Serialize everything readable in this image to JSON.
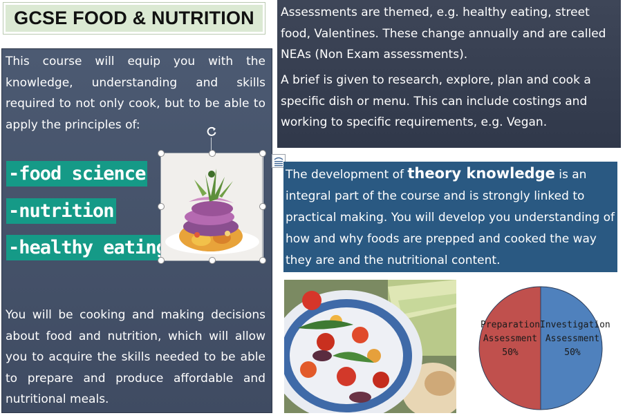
{
  "title": "GCSE FOOD & NUTRITION",
  "left_panel": {
    "intro": "This course will equip you with the knowledge, understanding and skills required to not only cook, but to be able to apply the principles of:",
    "keywords": [
      "-food science",
      "-nutrition",
      "-healthy eating"
    ],
    "closing": "You will be cooking and making decisions about food and nutrition, which will allow you to acquire the skills needed to be able to prepare and produce affordable and nutritional meals."
  },
  "assessments": {
    "paragraph_1": "Assessments are themed, e.g. healthy eating, street food, Valentines.   These change annually and are called NEAs (Non Exam assessments).",
    "paragraph_2": "A brief is given to research, explore, plan and cook a specific dish or menu. This can include costings and working to specific requirements, e.g. Vegan."
  },
  "theory": {
    "before": "The development of ",
    "highlight": "theory knowledge",
    "after": " is an integral part of the course and is strongly linked to practical making.  You will develop you understanding of how and why foods are prepped and cooked the way they are and the nutritional content."
  },
  "icons": {
    "rotate": "rotate-handle-icon",
    "layout": "layout-options-icon"
  },
  "colors": {
    "left_panel": "#46536b",
    "keyword_bg": "#159a87",
    "theory_panel": "#2a5982",
    "title_bg": "#dbe9d3"
  },
  "chart_data": {
    "type": "pie",
    "title": "",
    "series": [
      {
        "name": "Preparation Assessment",
        "value": 50,
        "label_line1": "Preparation",
        "label_line2": "Assessment",
        "label_pct": "50%",
        "color": "#c0504d"
      },
      {
        "name": "Investigation Assessment",
        "value": 50,
        "label_line1": "Investigation",
        "label_line2": "Assessment",
        "label_pct": "50%",
        "color": "#4f81bd"
      }
    ]
  }
}
